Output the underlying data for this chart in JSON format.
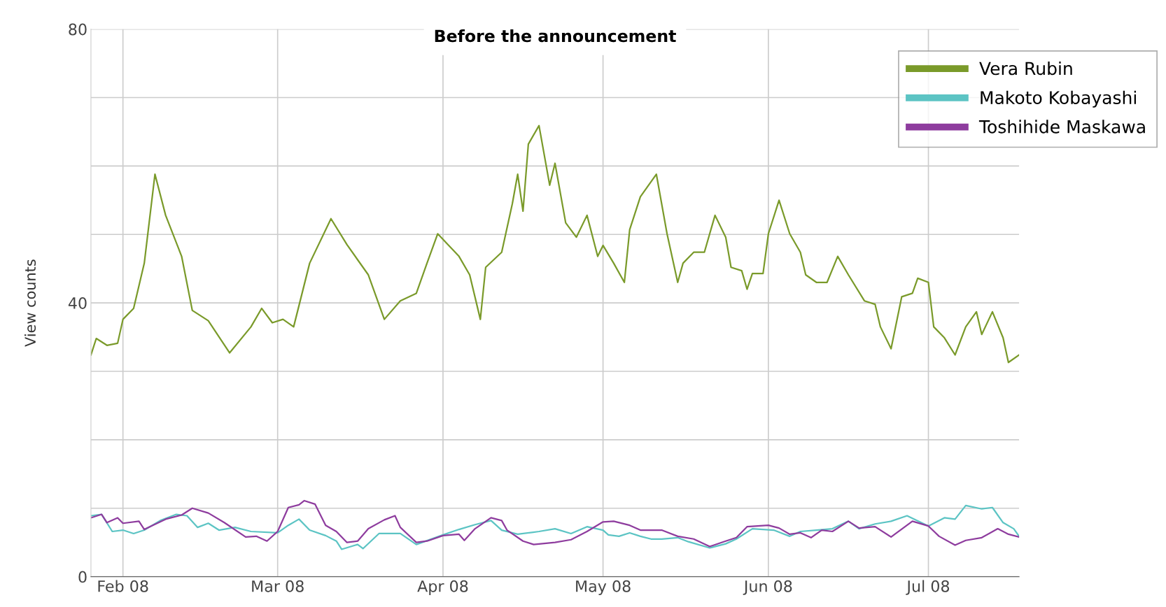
{
  "chart_data": {
    "type": "line",
    "title": "Before the announcement",
    "ylabel": "View counts",
    "xlim": [
      "2008-01-26",
      "2008-07-18"
    ],
    "xticks": [
      {
        "value": "2008-02-01",
        "label": "Feb 08"
      },
      {
        "value": "2008-03-01",
        "label": "Mar 08"
      },
      {
        "value": "2008-04-01",
        "label": "Apr 08"
      },
      {
        "value": "2008-05-01",
        "label": "May 08"
      },
      {
        "value": "2008-06-01",
        "label": "Jun 08"
      },
      {
        "value": "2008-07-01",
        "label": "Jul 08"
      }
    ],
    "ylim": [
      0,
      80
    ],
    "yticks": [
      0,
      {
        "value": 10,
        "label": null
      },
      {
        "value": 20,
        "label": null
      },
      {
        "value": 30,
        "label": null
      },
      40,
      {
        "value": 50,
        "label": null
      },
      {
        "value": 60,
        "label": null
      },
      {
        "value": 70,
        "label": null
      },
      80
    ],
    "grid": true,
    "legend": "top right",
    "marker": "none",
    "line_style": "solid",
    "series": [
      {
        "name": "Vera Rubin",
        "color": "#7a9a2a",
        "x": [
          "2008-01-26",
          "2008-01-27",
          "2008-01-29",
          "2008-01-31",
          "2008-02-01",
          "2008-02-03",
          "2008-02-05",
          "2008-02-07",
          "2008-02-09",
          "2008-02-12",
          "2008-02-14",
          "2008-02-17",
          "2008-02-21",
          "2008-02-25",
          "2008-02-27",
          "2008-02-29",
          "2008-03-02",
          "2008-03-04",
          "2008-03-07",
          "2008-03-11",
          "2008-03-14",
          "2008-03-18",
          "2008-03-21",
          "2008-03-24",
          "2008-03-27",
          "2008-03-29",
          "2008-03-31",
          "2008-04-04",
          "2008-04-06",
          "2008-04-08",
          "2008-04-09",
          "2008-04-12",
          "2008-04-14",
          "2008-04-15",
          "2008-04-16",
          "2008-04-17",
          "2008-04-19",
          "2008-04-21",
          "2008-04-22",
          "2008-04-24",
          "2008-04-26",
          "2008-04-28",
          "2008-04-30",
          "2008-05-01",
          "2008-05-03",
          "2008-05-05",
          "2008-05-06",
          "2008-05-08",
          "2008-05-11",
          "2008-05-13",
          "2008-05-15",
          "2008-05-16",
          "2008-05-18",
          "2008-05-20",
          "2008-05-22",
          "2008-05-24",
          "2008-05-25",
          "2008-05-27",
          "2008-05-28",
          "2008-05-29",
          "2008-05-31",
          "2008-06-01",
          "2008-06-03",
          "2008-06-05",
          "2008-06-07",
          "2008-06-08",
          "2008-06-10",
          "2008-06-12",
          "2008-06-14",
          "2008-06-16",
          "2008-06-19",
          "2008-06-21",
          "2008-06-22",
          "2008-06-24",
          "2008-06-26",
          "2008-06-28",
          "2008-06-29",
          "2008-07-01",
          "2008-07-02",
          "2008-07-04",
          "2008-07-06",
          "2008-07-08",
          "2008-07-10",
          "2008-07-11",
          "2008-07-13",
          "2008-07-15",
          "2008-07-16",
          "2008-07-18"
        ],
        "values": [
          32.4,
          34.8,
          33.8,
          34.1,
          37.6,
          39.2,
          45.8,
          58.8,
          52.8,
          46.8,
          38.9,
          37.4,
          32.7,
          36.5,
          39.2,
          37.1,
          37.6,
          36.5,
          45.8,
          52.3,
          48.5,
          44.1,
          37.6,
          40.3,
          41.4,
          45.8,
          50.1,
          46.8,
          44.1,
          37.6,
          45.2,
          47.4,
          54.5,
          58.8,
          53.4,
          63.2,
          65.9,
          57.2,
          60.4,
          51.7,
          49.6,
          52.8,
          46.8,
          48.4,
          45.8,
          43.0,
          50.7,
          55.5,
          58.8,
          50.1,
          43.0,
          45.8,
          47.4,
          47.4,
          52.8,
          49.6,
          45.2,
          44.7,
          42.0,
          44.3,
          44.3,
          50.1,
          55.0,
          50.1,
          47.4,
          44.1,
          43.0,
          43.0,
          46.8,
          44.1,
          40.3,
          39.8,
          36.5,
          33.3,
          40.9,
          41.4,
          43.6,
          43.0,
          36.5,
          34.9,
          32.4,
          36.5,
          38.7,
          35.4,
          38.7,
          34.9,
          31.3,
          32.4
        ]
      },
      {
        "name": "Makoto Kobayashi",
        "color": "#5cc4c4",
        "x": [
          "2008-01-26",
          "2008-01-28",
          "2008-01-30",
          "2008-02-01",
          "2008-02-03",
          "2008-02-05",
          "2008-02-08",
          "2008-02-11",
          "2008-02-13",
          "2008-02-15",
          "2008-02-17",
          "2008-02-19",
          "2008-02-22",
          "2008-02-25",
          "2008-03-01",
          "2008-03-03",
          "2008-03-05",
          "2008-03-07",
          "2008-03-10",
          "2008-03-12",
          "2008-03-13",
          "2008-03-16",
          "2008-03-17",
          "2008-03-20",
          "2008-03-24",
          "2008-03-27",
          "2008-04-01",
          "2008-04-04",
          "2008-04-07",
          "2008-04-10",
          "2008-04-12",
          "2008-04-15",
          "2008-04-19",
          "2008-04-22",
          "2008-04-25",
          "2008-04-28",
          "2008-05-01",
          "2008-05-02",
          "2008-05-04",
          "2008-05-06",
          "2008-05-08",
          "2008-05-10",
          "2008-05-12",
          "2008-05-15",
          "2008-05-17",
          "2008-05-21",
          "2008-05-24",
          "2008-05-26",
          "2008-05-29",
          "2008-06-02",
          "2008-06-05",
          "2008-06-07",
          "2008-06-10",
          "2008-06-13",
          "2008-06-16",
          "2008-06-18",
          "2008-06-21",
          "2008-06-24",
          "2008-06-27",
          "2008-07-01",
          "2008-07-04",
          "2008-07-06",
          "2008-07-08",
          "2008-07-11",
          "2008-07-13",
          "2008-07-15",
          "2008-07-17",
          "2008-07-18"
        ],
        "values": [
          8.9,
          9.1,
          6.6,
          6.8,
          6.3,
          6.8,
          8.2,
          9.1,
          8.9,
          7.2,
          7.8,
          6.8,
          7.2,
          6.6,
          6.4,
          7.5,
          8.4,
          6.8,
          6.0,
          5.2,
          4.0,
          4.7,
          4.1,
          6.3,
          6.3,
          4.7,
          6.1,
          6.9,
          7.6,
          8.2,
          6.8,
          6.2,
          6.6,
          7.0,
          6.3,
          7.3,
          6.8,
          6.1,
          5.9,
          6.4,
          5.9,
          5.5,
          5.5,
          5.7,
          5.1,
          4.2,
          4.8,
          5.5,
          7.0,
          6.8,
          5.9,
          6.6,
          6.8,
          7.0,
          8.1,
          7.0,
          7.7,
          8.1,
          8.9,
          7.4,
          8.6,
          8.4,
          10.4,
          9.9,
          10.1,
          7.9,
          7.0,
          5.9
        ]
      },
      {
        "name": "Toshihide Maskawa",
        "color": "#8e3c9e",
        "x": [
          "2008-01-26",
          "2008-01-28",
          "2008-01-29",
          "2008-01-31",
          "2008-02-01",
          "2008-02-04",
          "2008-02-05",
          "2008-02-09",
          "2008-02-12",
          "2008-02-14",
          "2008-02-17",
          "2008-02-20",
          "2008-02-24",
          "2008-02-26",
          "2008-02-28",
          "2008-03-01",
          "2008-03-03",
          "2008-03-05",
          "2008-03-06",
          "2008-03-08",
          "2008-03-10",
          "2008-03-12",
          "2008-03-14",
          "2008-03-16",
          "2008-03-18",
          "2008-03-21",
          "2008-03-23",
          "2008-03-24",
          "2008-03-27",
          "2008-03-29",
          "2008-04-01",
          "2008-04-04",
          "2008-04-05",
          "2008-04-07",
          "2008-04-10",
          "2008-04-12",
          "2008-04-13",
          "2008-04-16",
          "2008-04-18",
          "2008-04-22",
          "2008-04-25",
          "2008-04-28",
          "2008-05-01",
          "2008-05-03",
          "2008-05-06",
          "2008-05-08",
          "2008-05-10",
          "2008-05-12",
          "2008-05-15",
          "2008-05-18",
          "2008-05-21",
          "2008-05-24",
          "2008-05-26",
          "2008-05-28",
          "2008-06-01",
          "2008-06-03",
          "2008-06-05",
          "2008-06-07",
          "2008-06-09",
          "2008-06-11",
          "2008-06-13",
          "2008-06-16",
          "2008-06-18",
          "2008-06-21",
          "2008-06-24",
          "2008-06-28",
          "2008-07-01",
          "2008-07-03",
          "2008-07-06",
          "2008-07-08",
          "2008-07-11",
          "2008-07-14",
          "2008-07-16",
          "2008-07-18"
        ],
        "values": [
          8.6,
          9.1,
          7.9,
          8.6,
          7.8,
          8.1,
          6.9,
          8.4,
          9.0,
          10.0,
          9.3,
          7.9,
          5.8,
          5.9,
          5.2,
          6.6,
          10.1,
          10.5,
          11.1,
          10.6,
          7.5,
          6.6,
          5.0,
          5.2,
          7.0,
          8.3,
          8.9,
          7.2,
          5.0,
          5.2,
          6.0,
          6.2,
          5.3,
          7.0,
          8.6,
          8.2,
          6.8,
          5.2,
          4.7,
          5.0,
          5.4,
          6.6,
          8.0,
          8.1,
          7.5,
          6.8,
          6.8,
          6.8,
          5.9,
          5.5,
          4.4,
          5.2,
          5.7,
          7.3,
          7.5,
          7.1,
          6.2,
          6.4,
          5.7,
          6.8,
          6.6,
          8.1,
          7.1,
          7.3,
          5.8,
          8.1,
          7.4,
          5.9,
          4.6,
          5.3,
          5.7,
          7.0,
          6.2,
          5.8
        ]
      }
    ]
  }
}
